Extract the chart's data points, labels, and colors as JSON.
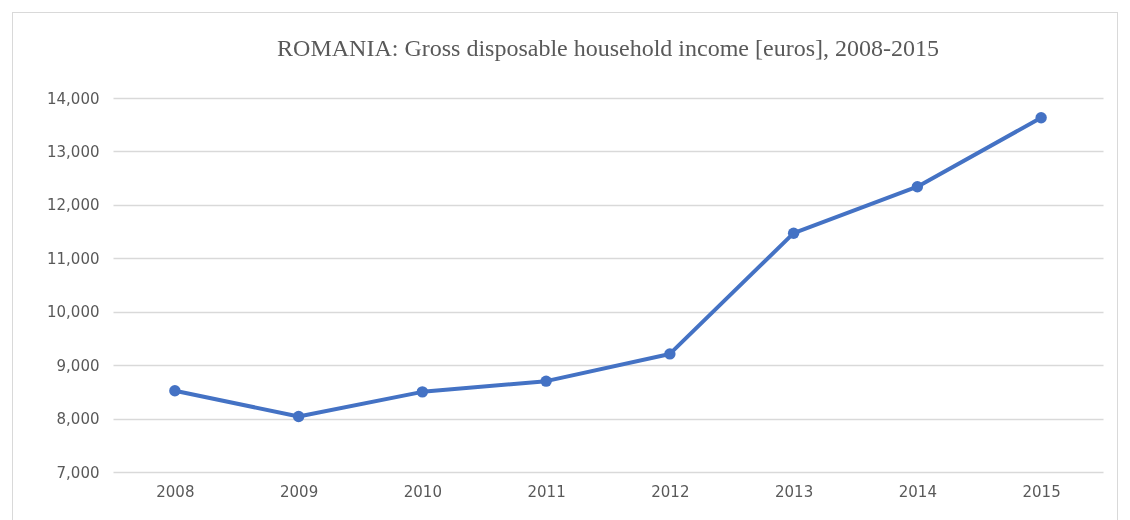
{
  "chart_data": {
    "type": "line",
    "title": "ROMANIA:   Gross disposable household income [euros], 2008-2015",
    "categories": [
      "2008",
      "2009",
      "2010",
      "2011",
      "2012",
      "2013",
      "2014",
      "2015"
    ],
    "series": [
      {
        "color": "#4472c4",
        "values": [
          8520,
          8040,
          8500,
          8700,
          9210,
          11470,
          12340,
          13630
        ]
      }
    ],
    "ylim": [
      7000,
      14000
    ],
    "yticks": [
      {
        "value": 7000,
        "label": "7,000"
      },
      {
        "value": 8000,
        "label": "8,000"
      },
      {
        "value": 9000,
        "label": "9,000"
      },
      {
        "value": 10000,
        "label": "10,000"
      },
      {
        "value": 11000,
        "label": "11,000"
      },
      {
        "value": 12000,
        "label": "12,000"
      },
      {
        "value": 13000,
        "label": "13,000"
      },
      {
        "value": 14000,
        "label": "14,000"
      }
    ],
    "grid": "y",
    "marker": "circle",
    "line_style": "solid"
  }
}
